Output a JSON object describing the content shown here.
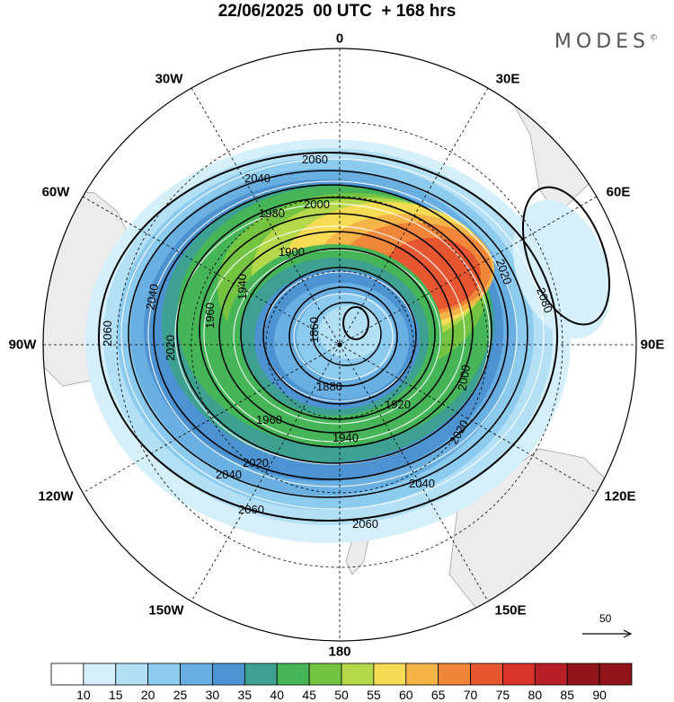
{
  "title": "22/06/2025  00 UTC  + 168 hrs",
  "brand": "MODES",
  "brand_mark": "©",
  "longitude_labels": [
    {
      "key": "n",
      "text": "0"
    },
    {
      "key": "e30",
      "text": "30E"
    },
    {
      "key": "e60",
      "text": "60E"
    },
    {
      "key": "e90",
      "text": "90E"
    },
    {
      "key": "e120",
      "text": "120E"
    },
    {
      "key": "e150",
      "text": "150E"
    },
    {
      "key": "s",
      "text": "180"
    },
    {
      "key": "w150",
      "text": "150W"
    },
    {
      "key": "w120",
      "text": "120W"
    },
    {
      "key": "w90",
      "text": "90W"
    },
    {
      "key": "w60",
      "text": "60W"
    },
    {
      "key": "w30",
      "text": "30W"
    }
  ],
  "contour_labels": [
    "2060",
    "2040",
    "2020",
    "2000",
    "1980",
    "1960",
    "1940",
    "1920",
    "1900",
    "1880",
    "1860",
    "2080"
  ],
  "wind_scale_label": "50",
  "colorbar": {
    "ticks": [
      "10",
      "15",
      "20",
      "25",
      "30",
      "35",
      "40",
      "45",
      "50",
      "55",
      "60",
      "65",
      "70",
      "75",
      "80",
      "85",
      "90"
    ],
    "colors": [
      "#ffffff",
      "#d6f0fb",
      "#b3e0f5",
      "#8ccaee",
      "#69afe2",
      "#4d93d1",
      "#3ea091",
      "#45b558",
      "#74c442",
      "#b4d84a",
      "#f6dc54",
      "#f5b447",
      "#f0863a",
      "#e65630",
      "#d8332a",
      "#b91f26",
      "#8f151b"
    ]
  },
  "colors": {
    "land": "#ececec",
    "contour": "#000000",
    "graticule": "#000000"
  }
}
